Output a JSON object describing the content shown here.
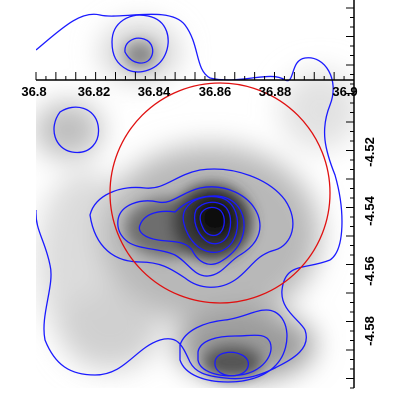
{
  "image": {
    "colormap": "grayscale",
    "contour_color": "#1a1aff",
    "region_color": "#e01010",
    "region_shape": "circle"
  },
  "axes": {
    "x_ticks": [
      "36.8",
      "36.82",
      "36.84",
      "36.86",
      "36.88",
      "36.9"
    ],
    "y_ticks": [
      "-4.52",
      "-4.54",
      "-4.56",
      "-4.58"
    ]
  }
}
